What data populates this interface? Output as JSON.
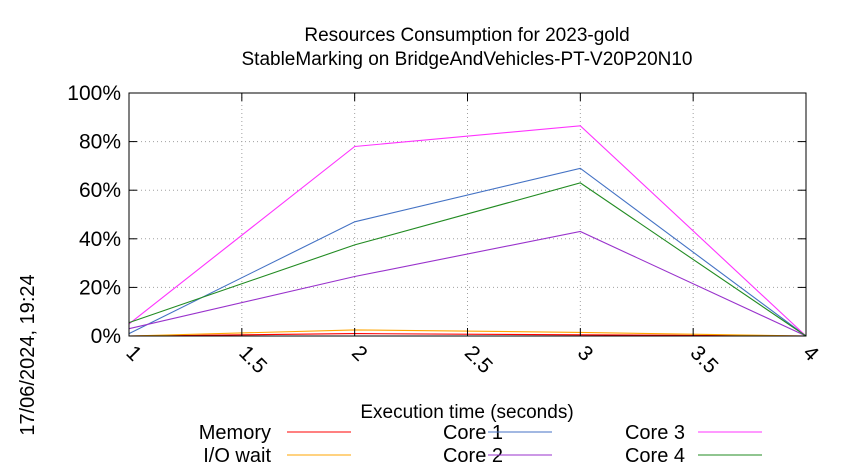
{
  "chart_data": {
    "type": "line",
    "title": "Resources Consumption for 2023-gold",
    "subtitle": "StableMarking on BridgeAndVehicles-PT-V20P20N10",
    "xlabel": "Execution time (seconds)",
    "ylabel": "",
    "xlim": [
      1,
      4
    ],
    "ylim": [
      0,
      100
    ],
    "x_ticks": [
      "1",
      "1.5",
      "2",
      "2.5",
      "3",
      "3.5",
      "4"
    ],
    "x_tick_values": [
      1,
      1.5,
      2,
      2.5,
      3,
      3.5,
      4
    ],
    "y_ticks": [
      "0%",
      "20%",
      "40%",
      "60%",
      "80%",
      "100%"
    ],
    "y_tick_values": [
      0,
      20,
      40,
      60,
      80,
      100
    ],
    "grid": true,
    "legend_position": "bottom",
    "timestamp": "17/06/2024, 19:24",
    "x": [
      1,
      2,
      3,
      4
    ],
    "series": [
      {
        "name": "Memory",
        "color": "#ff0000",
        "values": [
          0,
          1,
          0.5,
          0
        ]
      },
      {
        "name": "I/O wait",
        "color": "#ffa500",
        "values": [
          0,
          2.5,
          1.5,
          0
        ]
      },
      {
        "name": "Core 1",
        "color": "#4472c4",
        "values": [
          1,
          47,
          69,
          0
        ]
      },
      {
        "name": "Core 2",
        "color": "#9932cc",
        "values": [
          3,
          24.5,
          43,
          0
        ]
      },
      {
        "name": "Core 3",
        "color": "#ff33ff",
        "values": [
          5,
          78,
          86.5,
          0
        ]
      },
      {
        "name": "Core 4",
        "color": "#228b22",
        "values": [
          5.5,
          37.5,
          63,
          0
        ]
      }
    ]
  }
}
